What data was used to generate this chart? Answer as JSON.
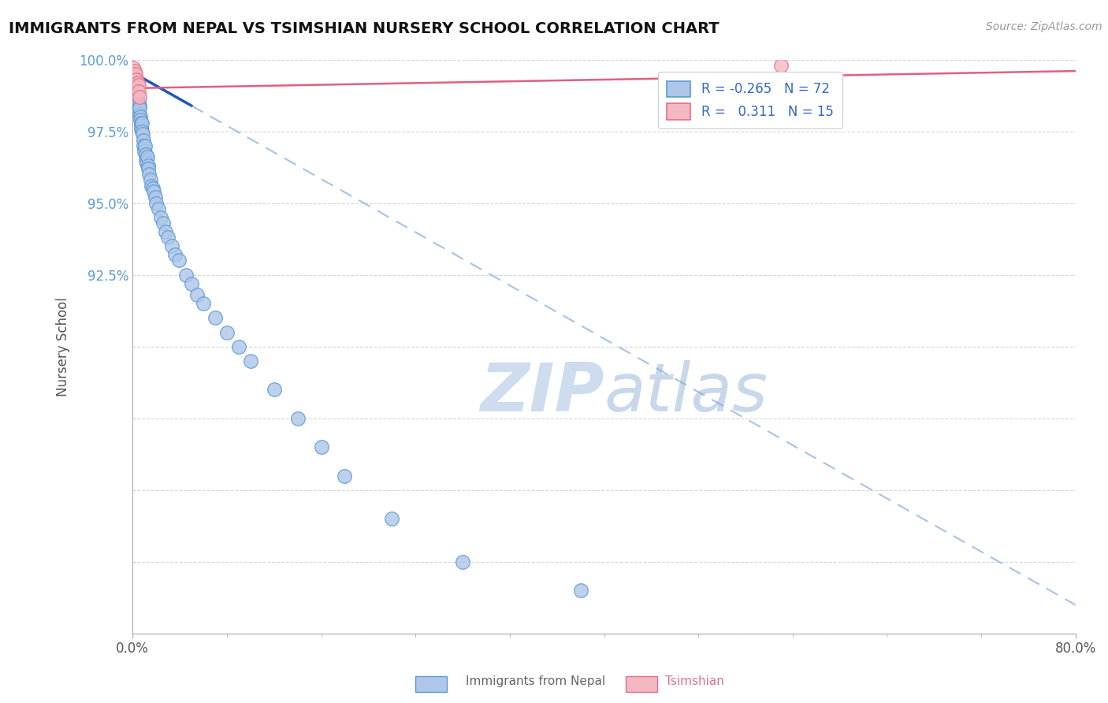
{
  "title": "IMMIGRANTS FROM NEPAL VS TSIMSHIAN NURSERY SCHOOL CORRELATION CHART",
  "source_text": "Source: ZipAtlas.com",
  "ylabel": "Nursery School",
  "x_label_bottom1": "Immigrants from Nepal",
  "x_label_bottom2": "Tsimshian",
  "xlim": [
    0.0,
    80.0
  ],
  "ylim": [
    80.0,
    100.0
  ],
  "ytick_vals": [
    80.0,
    82.5,
    85.0,
    87.5,
    90.0,
    92.5,
    95.0,
    97.5,
    100.0
  ],
  "ytick_labels": [
    "",
    "",
    "",
    "",
    "",
    "92.5%",
    "95.0%",
    "97.5%",
    "100.0%"
  ],
  "blue_color": "#aec6e8",
  "blue_edge": "#5b9bd5",
  "pink_color": "#f4b8c1",
  "pink_edge": "#e07090",
  "trend_blue": "#2255bb",
  "trend_blue_dash": "#80a8e0",
  "trend_pink": "#e06080",
  "watermark_color": "#cddcee",
  "background_color": "#ffffff",
  "nepal_x": [
    0.05,
    0.08,
    0.1,
    0.12,
    0.15,
    0.18,
    0.2,
    0.22,
    0.25,
    0.28,
    0.3,
    0.32,
    0.35,
    0.38,
    0.4,
    0.42,
    0.45,
    0.48,
    0.5,
    0.52,
    0.55,
    0.58,
    0.6,
    0.62,
    0.65,
    0.68,
    0.7,
    0.72,
    0.75,
    0.78,
    0.8,
    0.85,
    0.9,
    0.95,
    1.0,
    1.05,
    1.1,
    1.15,
    1.2,
    1.25,
    1.3,
    1.35,
    1.4,
    1.5,
    1.6,
    1.7,
    1.8,
    1.9,
    2.0,
    2.2,
    2.4,
    2.6,
    2.8,
    3.0,
    3.3,
    3.6,
    3.9,
    4.5,
    5.0,
    5.5,
    6.0,
    7.0,
    8.0,
    9.0,
    10.0,
    12.0,
    14.0,
    16.0,
    18.0,
    22.0,
    28.0,
    38.0
  ],
  "nepal_y": [
    99.6,
    99.4,
    99.5,
    99.3,
    99.2,
    99.0,
    99.3,
    99.1,
    98.9,
    99.0,
    98.7,
    98.8,
    98.6,
    98.9,
    98.5,
    98.7,
    98.3,
    98.6,
    98.4,
    98.5,
    98.2,
    98.4,
    98.1,
    98.3,
    98.0,
    97.9,
    97.8,
    97.7,
    97.6,
    97.8,
    97.5,
    97.4,
    97.2,
    97.0,
    96.8,
    97.0,
    96.7,
    96.5,
    96.4,
    96.6,
    96.3,
    96.2,
    96.0,
    95.8,
    95.6,
    95.5,
    95.4,
    95.2,
    95.0,
    94.8,
    94.5,
    94.3,
    94.0,
    93.8,
    93.5,
    93.2,
    93.0,
    92.5,
    92.2,
    91.8,
    91.5,
    91.0,
    90.5,
    90.0,
    89.5,
    88.5,
    87.5,
    86.5,
    85.5,
    84.0,
    82.5,
    81.5
  ],
  "tsimshian_x": [
    0.05,
    0.1,
    0.15,
    0.18,
    0.22,
    0.25,
    0.28,
    0.32,
    0.35,
    0.4,
    0.45,
    0.5,
    0.55,
    0.6,
    55.0
  ],
  "tsimshian_y": [
    99.7,
    99.5,
    99.4,
    99.6,
    99.3,
    99.5,
    99.1,
    99.3,
    99.0,
    98.8,
    99.2,
    99.1,
    98.9,
    98.7,
    99.8
  ],
  "blue_trend_x0": 0.0,
  "blue_trend_y0": 99.55,
  "blue_trend_x1": 80.0,
  "blue_trend_y1": 81.0,
  "blue_solid_end": 5.0,
  "pink_trend_x0": 0.0,
  "pink_trend_y0": 99.0,
  "pink_trend_x1": 80.0,
  "pink_trend_y1": 99.6
}
